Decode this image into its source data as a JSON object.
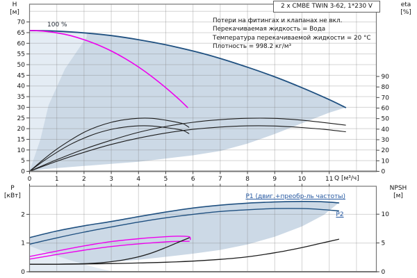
{
  "panel": {
    "title": "2 x CMBE TWIN 3-62, 1*230 V",
    "notes": [
      "Потери на фитингах и клапанах не вкл.",
      "Перекачиваемая жидкость = Вода",
      "Температура перекачиваемой жидкости = 20 °C",
      "Плотность = 998.2 кг/м³"
    ]
  },
  "labels": {
    "h_quantity": "H",
    "h_unit": "[м]",
    "eta_quantity": "eta",
    "eta_unit": "[%]",
    "p_quantity": "P",
    "p_unit": "[кВт]",
    "npsh_quantity": "NPSH",
    "npsh_unit": "[м]",
    "q_axis": "Q [м³/ч]",
    "speed_100": "100 %",
    "p1_curve": "P1 (двиг.+преобр-ль частоты)",
    "p2_curve": "P2"
  },
  "colors": {
    "navy": "#1f5080",
    "magenta": "#ee00ee",
    "black_curve": "#1c1c1c",
    "blue_label": "#2457a0",
    "fill_main": "#ccd9e6",
    "fill_light": "#e4ecf4",
    "grid": "rgba(125,125,125,0.33)",
    "frame": "#767676",
    "tick": "#444444",
    "text": "#111111"
  },
  "chart_data": [
    {
      "type": "line",
      "name": "qh-efficiency-chart",
      "title": "2 x CMBE TWIN 3-62, 1*230 V",
      "x_axis": {
        "label": "Q [м³/ч]",
        "min": 0,
        "max": 12.6,
        "ticks": [
          0,
          1,
          2,
          3,
          4,
          5,
          6,
          7,
          8,
          9,
          10,
          11
        ]
      },
      "y_left": {
        "label": "H [м]",
        "min": 0,
        "max": 78,
        "ticks": [
          0,
          5,
          10,
          15,
          20,
          25,
          30,
          35,
          40,
          45,
          50,
          55,
          60,
          65,
          70
        ]
      },
      "y_right": {
        "label": "eta [%]",
        "min": 0,
        "max": 90,
        "ticks": [
          0,
          10,
          20,
          30,
          40,
          50,
          60,
          70,
          80,
          90
        ]
      },
      "grid": true,
      "series": [
        {
          "name": "max-speed-two-pumps",
          "axis": "H",
          "color_key": "navy",
          "width": 1.8,
          "points": [
            [
              0,
              66
            ],
            [
              1,
              65.7
            ],
            [
              2,
              64.9
            ],
            [
              3,
              63.6
            ],
            [
              4,
              61.7
            ],
            [
              5,
              59.3
            ],
            [
              6,
              56.4
            ],
            [
              7,
              52.9
            ],
            [
              8,
              48.8
            ],
            [
              9,
              44.3
            ],
            [
              10,
              39.2
            ],
            [
              11,
              33.6
            ],
            [
              11.6,
              29.9
            ]
          ]
        },
        {
          "name": "speed-100pct-one-pump",
          "axis": "H",
          "color_key": "magenta",
          "width": 1.6,
          "label": "100 %",
          "points": [
            [
              0,
              66
            ],
            [
              0.5,
              65.7
            ],
            [
              1,
              64.9
            ],
            [
              1.5,
              63.6
            ],
            [
              2,
              61.7
            ],
            [
              2.5,
              59.3
            ],
            [
              3,
              56.4
            ],
            [
              3.5,
              52.9
            ],
            [
              4,
              48.9
            ],
            [
              4.5,
              44.3
            ],
            [
              5,
              39.2
            ],
            [
              5.5,
              33.6
            ],
            [
              5.8,
              29.9
            ]
          ]
        },
        {
          "name": "eta-two-pumps-upper",
          "axis": "eta",
          "color_key": "black_curve",
          "width": 1.1,
          "points": [
            [
              0,
              0
            ],
            [
              1,
              11
            ],
            [
              2,
              21
            ],
            [
              3,
              29.5
            ],
            [
              4,
              37
            ],
            [
              5,
              42.5
            ],
            [
              6,
              46.5
            ],
            [
              7,
              49
            ],
            [
              8,
              50.3
            ],
            [
              9,
              50.2
            ],
            [
              10,
              48.5
            ],
            [
              10.8,
              46.3
            ],
            [
              11.6,
              43.8
            ]
          ]
        },
        {
          "name": "eta-two-pumps-lower",
          "axis": "eta",
          "color_key": "black_curve",
          "width": 1.1,
          "points": [
            [
              0,
              0
            ],
            [
              1,
              9.5
            ],
            [
              2,
              18
            ],
            [
              3,
              25.5
            ],
            [
              4,
              31.5
            ],
            [
              5,
              36.3
            ],
            [
              6,
              39.8
            ],
            [
              7,
              42
            ],
            [
              8,
              43.1
            ],
            [
              9,
              43
            ],
            [
              10,
              41.5
            ],
            [
              10.8,
              39.8
            ],
            [
              11.6,
              37.5
            ]
          ]
        },
        {
          "name": "eta-one-pump-upper",
          "axis": "eta",
          "color_key": "black_curve",
          "width": 1.1,
          "points": [
            [
              0,
              0
            ],
            [
              0.5,
              11
            ],
            [
              1,
              21
            ],
            [
              1.5,
              29.5
            ],
            [
              2,
              37
            ],
            [
              2.5,
              42.5
            ],
            [
              3,
              46.5
            ],
            [
              3.5,
              49
            ],
            [
              4,
              50.3
            ],
            [
              4.5,
              50.2
            ],
            [
              5,
              48.5
            ],
            [
              5.4,
              46.6
            ],
            [
              5.65,
              45
            ],
            [
              5.85,
              41.8
            ]
          ]
        },
        {
          "name": "eta-one-pump-lower",
          "axis": "eta",
          "color_key": "black_curve",
          "width": 1.1,
          "points": [
            [
              0,
              0
            ],
            [
              0.5,
              9.5
            ],
            [
              1,
              18
            ],
            [
              1.5,
              25.5
            ],
            [
              2,
              31.5
            ],
            [
              2.5,
              36.3
            ],
            [
              3,
              39.8
            ],
            [
              3.5,
              42
            ],
            [
              4,
              43.1
            ],
            [
              4.5,
              43
            ],
            [
              5,
              41.5
            ],
            [
              5.4,
              40
            ],
            [
              5.65,
              38.6
            ],
            [
              5.85,
              35.8
            ]
          ]
        }
      ],
      "regions": [
        {
          "name": "operating-envelope",
          "axis": "H",
          "color_key": "fill_main",
          "points": [
            [
              0,
              66
            ],
            [
              1,
              65.7
            ],
            [
              2,
              64.9
            ],
            [
              3,
              63.6
            ],
            [
              4,
              61.7
            ],
            [
              5,
              59.3
            ],
            [
              6,
              56.4
            ],
            [
              7,
              52.9
            ],
            [
              8,
              48.8
            ],
            [
              9,
              44.3
            ],
            [
              10,
              39.2
            ],
            [
              11,
              33.6
            ],
            [
              11.6,
              29.9
            ],
            [
              11,
              27.5
            ],
            [
              10,
              22.5
            ],
            [
              9,
              17.5
            ],
            [
              8,
              13
            ],
            [
              7,
              9.5
            ],
            [
              6,
              7.5
            ],
            [
              5,
              6
            ],
            [
              4,
              4.5
            ],
            [
              3,
              3.5
            ],
            [
              2,
              2.5
            ],
            [
              1,
              1.5
            ],
            [
              0.5,
              1
            ],
            [
              0,
              0
            ]
          ]
        },
        {
          "name": "single-pump-overlap-wedge",
          "axis": "H",
          "color_key": "fill_light",
          "points": [
            [
              0,
              0
            ],
            [
              0.4,
              15
            ],
            [
              0.7,
              31
            ],
            [
              1.3,
              48
            ],
            [
              2.1,
              63
            ],
            [
              2.1,
              64.8
            ],
            [
              1,
              65.7
            ],
            [
              0,
              66
            ]
          ]
        }
      ]
    },
    {
      "type": "line",
      "name": "power-npsh-chart",
      "x_axis": {
        "label": "Q [м³/ч]",
        "min": 0,
        "max": 12.6,
        "ticks": [
          0,
          1,
          2,
          3,
          4,
          5,
          6,
          7,
          8,
          9,
          10,
          11
        ]
      },
      "y_left": {
        "label": "P [кВт]",
        "min": 0,
        "max": 3,
        "ticks": [
          0,
          1,
          2
        ]
      },
      "y_right": {
        "label": "NPSH [м]",
        "min": 0,
        "max": 14.8,
        "ticks": [
          0,
          5,
          10
        ]
      },
      "grid": true,
      "series": [
        {
          "name": "p1-two-pumps",
          "axis": "P",
          "color_key": "navy",
          "width": 1.6,
          "label": "P1 (двиг.+преобр-ль частоты)",
          "points": [
            [
              0,
              1.19
            ],
            [
              1,
              1.42
            ],
            [
              2,
              1.6
            ],
            [
              3,
              1.75
            ],
            [
              4,
              1.92
            ],
            [
              5,
              2.08
            ],
            [
              6,
              2.22
            ],
            [
              7,
              2.32
            ],
            [
              8,
              2.39
            ],
            [
              9,
              2.43
            ],
            [
              10,
              2.45
            ],
            [
              10.7,
              2.44
            ],
            [
              11.35,
              2.4
            ]
          ]
        },
        {
          "name": "p2-two-pumps",
          "axis": "P",
          "color_key": "navy",
          "width": 1.4,
          "label": "P2",
          "points": [
            [
              0,
              0.96
            ],
            [
              1,
              1.18
            ],
            [
              2,
              1.38
            ],
            [
              3,
              1.56
            ],
            [
              4,
              1.73
            ],
            [
              5,
              1.88
            ],
            [
              6,
              2.0
            ],
            [
              7,
              2.1
            ],
            [
              8,
              2.16
            ],
            [
              9,
              2.2
            ],
            [
              10,
              2.2
            ],
            [
              10.7,
              2.17
            ],
            [
              11.35,
              2.12
            ]
          ]
        },
        {
          "name": "p1-one-pump",
          "axis": "P",
          "color_key": "magenta",
          "width": 1.4,
          "points": [
            [
              0,
              0.53
            ],
            [
              1,
              0.72
            ],
            [
              2,
              0.9
            ],
            [
              3,
              1.05
            ],
            [
              4,
              1.15
            ],
            [
              5,
              1.22
            ],
            [
              5.5,
              1.24
            ],
            [
              5.86,
              1.22
            ],
            [
              5.9,
              1.12
            ]
          ]
        },
        {
          "name": "p2-one-pump",
          "axis": "P",
          "color_key": "magenta",
          "width": 1.4,
          "points": [
            [
              0,
              0.44
            ],
            [
              1,
              0.6
            ],
            [
              2,
              0.75
            ],
            [
              3,
              0.88
            ],
            [
              4,
              0.97
            ],
            [
              5,
              1.04
            ],
            [
              5.5,
              1.06
            ],
            [
              5.86,
              1.06
            ]
          ]
        },
        {
          "name": "npsh-one-pump",
          "axis": "N",
          "color_key": "black_curve",
          "width": 1.3,
          "points": [
            [
              0,
              1.3
            ],
            [
              1,
              1.32
            ],
            [
              2,
              1.4
            ],
            [
              2.5,
              1.52
            ],
            [
              3,
              1.75
            ],
            [
              3.5,
              2.1
            ],
            [
              4,
              2.6
            ],
            [
              4.5,
              3.3
            ],
            [
              5,
              4.2
            ],
            [
              5.5,
              5.2
            ],
            [
              5.86,
              5.9
            ]
          ]
        },
        {
          "name": "npsh-two-pumps",
          "axis": "N",
          "color_key": "black_curve",
          "width": 1.3,
          "points": [
            [
              0,
              1.3
            ],
            [
              1,
              1.31
            ],
            [
              2,
              1.35
            ],
            [
              3,
              1.42
            ],
            [
              4,
              1.52
            ],
            [
              5,
              1.65
            ],
            [
              6,
              1.85
            ],
            [
              7,
              2.15
            ],
            [
              8,
              2.6
            ],
            [
              9,
              3.3
            ],
            [
              10,
              4.2
            ],
            [
              10.7,
              4.95
            ],
            [
              11.35,
              5.65
            ]
          ]
        }
      ],
      "regions": [
        {
          "name": "power-envelope",
          "axis": "P",
          "color_key": "fill_main",
          "points": [
            [
              0,
              1.19
            ],
            [
              1,
              1.42
            ],
            [
              2,
              1.6
            ],
            [
              3,
              1.75
            ],
            [
              4,
              1.92
            ],
            [
              5,
              2.08
            ],
            [
              6,
              2.22
            ],
            [
              7,
              2.32
            ],
            [
              8,
              2.39
            ],
            [
              9,
              2.43
            ],
            [
              10,
              2.45
            ],
            [
              10.7,
              2.44
            ],
            [
              11.35,
              2.4
            ],
            [
              10.8,
              1.98
            ],
            [
              10,
              1.58
            ],
            [
              9,
              1.22
            ],
            [
              8,
              0.95
            ],
            [
              7,
              0.76
            ],
            [
              6,
              0.63
            ],
            [
              5,
              0.52
            ],
            [
              4,
              0.42
            ],
            [
              3,
              0.34
            ],
            [
              2,
              0.28
            ],
            [
              1,
              0.24
            ],
            [
              0,
              0.2
            ]
          ]
        },
        {
          "name": "power-overlap-wedge",
          "axis": "P",
          "color_key": "fill_light",
          "points": [
            [
              0,
              0
            ],
            [
              0,
              0.9
            ],
            [
              0.5,
              0.72
            ],
            [
              1,
              0.55
            ],
            [
              1.5,
              0.4
            ],
            [
              2,
              0.26
            ],
            [
              2.5,
              0.13
            ],
            [
              3,
              0.02
            ],
            [
              3,
              0
            ]
          ]
        }
      ]
    }
  ]
}
